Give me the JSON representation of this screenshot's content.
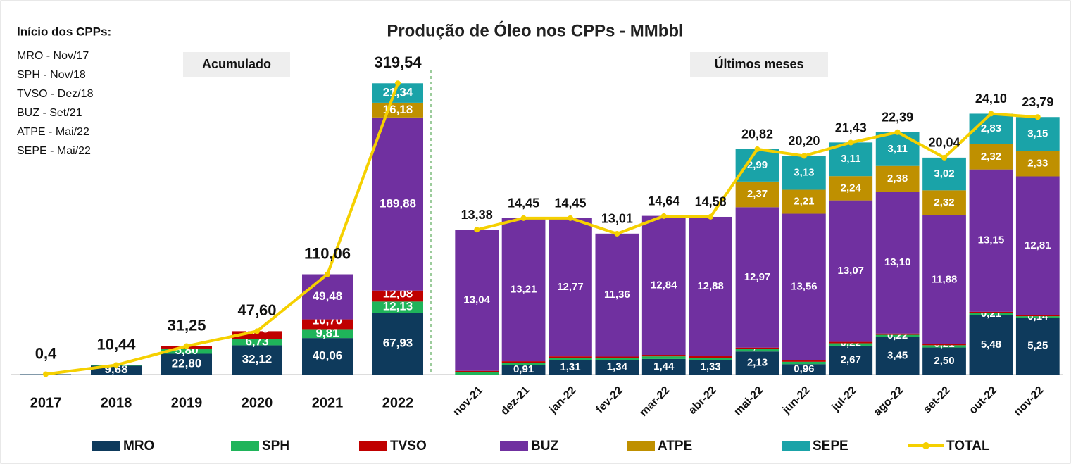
{
  "title": "Produção de Óleo nos CPPs - MMbbl",
  "notes": {
    "title": "Início dos CPPs:",
    "items": [
      "MRO  - Nov/17",
      "SPH   - Nov/18",
      "TVSO - Dez/18",
      "BUZ  - Set/21",
      "ATPE - Mai/22",
      "SEPE - Mai/22"
    ]
  },
  "chart_data": [
    {
      "type": "bar",
      "stacked": true,
      "subtitle": "Acumulado",
      "categories": [
        "2017",
        "2018",
        "2019",
        "2020",
        "2021",
        "2022"
      ],
      "ylim": [
        0,
        380
      ],
      "series": [
        {
          "name": "MRO",
          "color": "#0e3a5c",
          "values": [
            0.4,
            9.68,
            22.8,
            32.12,
            40.06,
            67.93
          ],
          "value_labels": [
            null,
            "9,68",
            "22,80",
            "32,12",
            "40,06",
            "67,93"
          ]
        },
        {
          "name": "SPH",
          "color": "#1fb45a",
          "values": [
            null,
            0.76,
            5.8,
            6.73,
            9.81,
            12.13
          ],
          "value_labels": [
            null,
            null,
            "5,80",
            "6,73",
            "9,81",
            "12,13"
          ]
        },
        {
          "name": "TVSO",
          "color": "#c00000",
          "values": [
            null,
            null,
            2.65,
            8.73,
            10.7,
            12.08
          ],
          "value_labels": [
            null,
            null,
            "2,65",
            "8,73",
            "10,70",
            "12,08"
          ]
        },
        {
          "name": "BUZ",
          "color": "#7030a0",
          "values": [
            null,
            null,
            null,
            null,
            49.48,
            189.88
          ],
          "value_labels": [
            null,
            null,
            null,
            null,
            "49,48",
            "189,88"
          ]
        },
        {
          "name": "ATPE",
          "color": "#bf9000",
          "values": [
            null,
            null,
            null,
            null,
            null,
            16.18
          ],
          "value_labels": [
            null,
            null,
            null,
            null,
            null,
            "16,18"
          ]
        },
        {
          "name": "SEPE",
          "color": "#1aa3a8",
          "values": [
            null,
            null,
            null,
            null,
            null,
            21.34
          ],
          "value_labels": [
            null,
            null,
            null,
            null,
            null,
            "21,34"
          ]
        }
      ],
      "total": {
        "name": "TOTAL",
        "color": "#f5d000",
        "values": [
          0.4,
          10.44,
          31.25,
          47.6,
          110.06,
          319.54
        ],
        "value_labels": [
          "0,4",
          "10,44",
          "31,25",
          "47,60",
          "110,06",
          "319,54"
        ]
      }
    },
    {
      "type": "bar",
      "stacked": true,
      "subtitle": "Últimos meses",
      "categories": [
        "nov-21",
        "dez-21",
        "jan-22",
        "fev-22",
        "mar-22",
        "abr-22",
        "mai-22",
        "jun-22",
        "jul-22",
        "ago-22",
        "set-22",
        "out-22",
        "nov-22"
      ],
      "ylim": [
        0,
        32
      ],
      "series": [
        {
          "name": "MRO",
          "color": "#0e3a5c",
          "values": [
            0.0,
            0.91,
            1.31,
            1.34,
            1.44,
            1.33,
            2.13,
            0.96,
            2.67,
            3.45,
            2.5,
            5.48,
            5.25
          ],
          "value_labels": [
            "0,00",
            "0,91",
            "1,31",
            "1,34",
            "1,44",
            "1,33",
            "2,13",
            "0,96",
            "2,67",
            "3,45",
            "2,50",
            "5,48",
            "5,25"
          ]
        },
        {
          "name": "SPH",
          "color": "#1fb45a",
          "values": [
            0.2,
            0.18,
            0.23,
            0.19,
            0.24,
            0.23,
            0.23,
            0.22,
            0.22,
            0.22,
            0.21,
            0.21,
            0.14
          ],
          "value_labels": [
            "0,...",
            "0,18",
            "0,23",
            "0,19",
            "0,24",
            "0,23",
            "0,23",
            "0,22",
            "0,22",
            "0,22",
            "0,21",
            "0,21",
            "0,14"
          ]
        },
        {
          "name": "TVSO",
          "color": "#c00000",
          "values": [
            0.14,
            0.14,
            0.14,
            0.13,
            0.14,
            0.13,
            0.13,
            0.12,
            0.13,
            0.12,
            0.11,
            0.11,
            0.11
          ],
          "value_labels": [
            "0,14",
            "0,14",
            "0,14",
            "0,13",
            "0,14",
            "0,13",
            "0,13",
            "0,12",
            "0,13",
            "0,12",
            "0,11",
            "0,11",
            "0,11"
          ]
        },
        {
          "name": "BUZ",
          "color": "#7030a0",
          "values": [
            13.04,
            13.21,
            12.77,
            11.36,
            12.84,
            12.88,
            12.97,
            13.56,
            13.07,
            13.1,
            11.88,
            13.15,
            12.81
          ],
          "value_labels": [
            "13,04",
            "13,21",
            "12,77",
            "11,36",
            "12,84",
            "12,88",
            "12,97",
            "13,56",
            "13,07",
            "13,10",
            "11,88",
            "13,15",
            "12,81"
          ]
        },
        {
          "name": "ATPE",
          "color": "#bf9000",
          "values": [
            null,
            null,
            null,
            null,
            null,
            null,
            2.37,
            2.21,
            2.24,
            2.38,
            2.32,
            2.32,
            2.33
          ],
          "value_labels": [
            null,
            null,
            null,
            null,
            null,
            null,
            "2,37",
            "2,21",
            "2,24",
            "2,38",
            "2,32",
            "2,32",
            "2,33"
          ]
        },
        {
          "name": "SEPE",
          "color": "#1aa3a8",
          "values": [
            null,
            null,
            null,
            null,
            null,
            null,
            2.99,
            3.13,
            3.11,
            3.11,
            3.02,
            2.83,
            3.15
          ],
          "value_labels": [
            null,
            null,
            null,
            null,
            null,
            null,
            "2,99",
            "3,13",
            "3,11",
            "3,11",
            "3,02",
            "2,83",
            "3,15"
          ]
        }
      ],
      "total": {
        "name": "TOTAL",
        "color": "#f5d000",
        "values": [
          13.38,
          14.45,
          14.45,
          13.01,
          14.64,
          14.58,
          20.82,
          20.2,
          21.43,
          22.39,
          20.04,
          24.1,
          23.79
        ],
        "value_labels": [
          "13,38",
          "14,45",
          "14,45",
          "13,01",
          "14,64",
          "14,58",
          "20,82",
          "20,20",
          "21,43",
          "22,39",
          "20,04",
          "24,10",
          "23,79"
        ]
      }
    }
  ]
}
